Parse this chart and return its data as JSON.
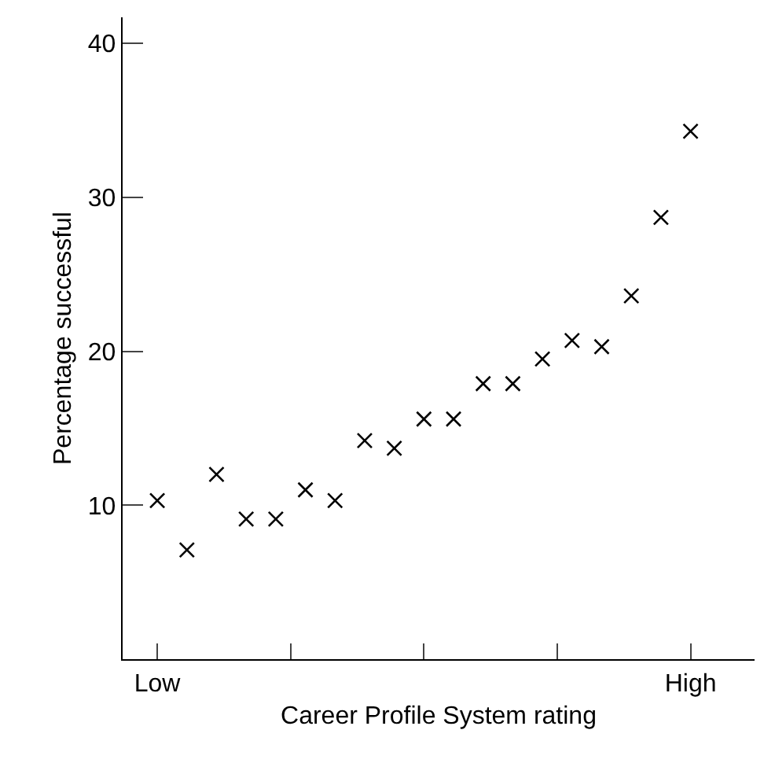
{
  "chart_data": {
    "type": "scatter",
    "xlabel": "Career Profile System rating",
    "ylabel": "Percentage successful",
    "categories": [
      "Low",
      null,
      null,
      null,
      null,
      null,
      null,
      null,
      null,
      null,
      null,
      null,
      null,
      null,
      null,
      null,
      null,
      null,
      "High"
    ],
    "series": [
      {
        "color": "#000000",
        "values": [
          10.3,
          7.1,
          12.0,
          9.1,
          9.1,
          11.0,
          10.3,
          14.2,
          13.7,
          15.6,
          15.6,
          17.9,
          17.9,
          19.5,
          20.7,
          20.3,
          23.6,
          28.7,
          34.3
        ]
      }
    ],
    "ylim": [
      0,
      41.7
    ],
    "yticks": [
      10,
      20,
      30,
      40
    ],
    "marker": "cross"
  }
}
